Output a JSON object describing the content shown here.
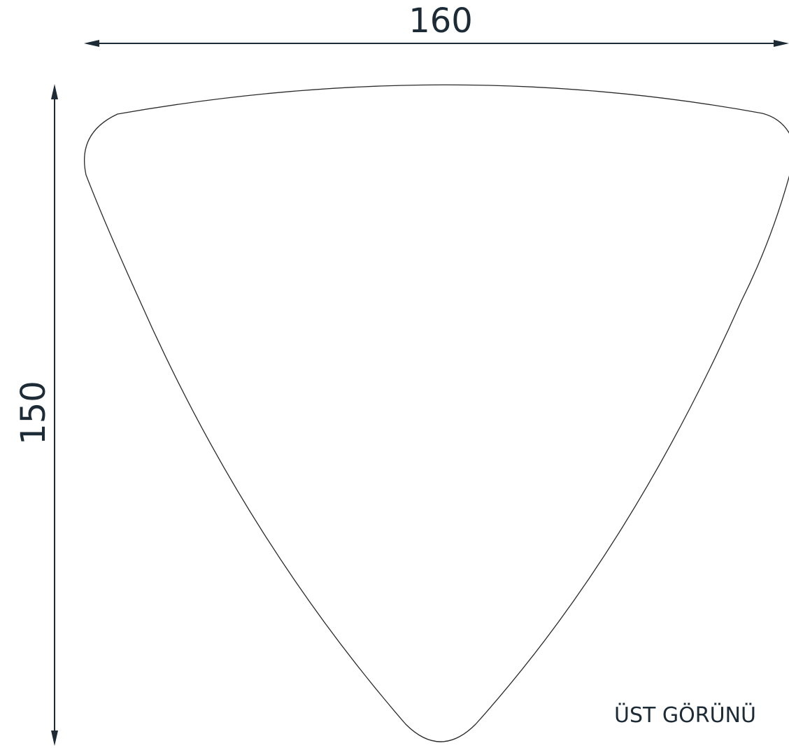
{
  "dimensions": {
    "width": {
      "value": "160"
    },
    "height": {
      "value": "150"
    }
  },
  "view_label": "ÜST GÖRÜNÜ",
  "colors": {
    "line": "#1d2b36",
    "outline": "#2a2a2a",
    "background": "#ffffff"
  }
}
